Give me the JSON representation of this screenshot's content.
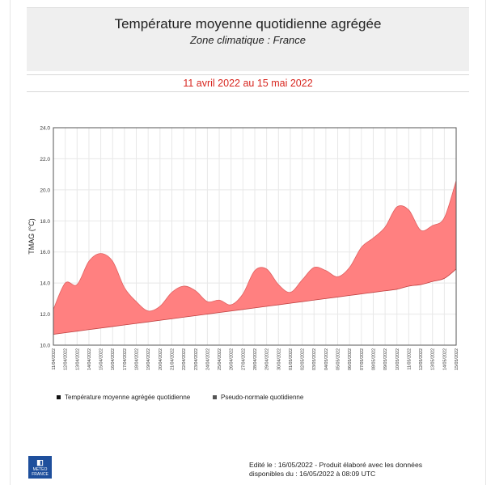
{
  "header": {
    "title": "Température moyenne quotidienne agrégée",
    "subtitle": "Zone climatique : France"
  },
  "date_range": "11 avril 2022 au 15 mai 2022",
  "chart_data": {
    "type": "area",
    "ylabel": "TMAG (°C)",
    "ylim": [
      10.0,
      24.0
    ],
    "y_ticks": [
      "10.0",
      "12.0",
      "14.0",
      "16.0",
      "18.0",
      "20.0",
      "22.0",
      "24.0"
    ],
    "grid": true,
    "x": [
      "11/04/2022",
      "12/04/2022",
      "13/04/2022",
      "14/04/2022",
      "15/04/2022",
      "16/04/2022",
      "17/04/2022",
      "18/04/2022",
      "19/04/2022",
      "20/04/2022",
      "21/04/2022",
      "22/04/2022",
      "23/04/2022",
      "24/04/2022",
      "25/04/2022",
      "26/04/2022",
      "27/04/2022",
      "28/04/2022",
      "29/04/2022",
      "30/04/2022",
      "01/05/2022",
      "02/05/2022",
      "03/05/2022",
      "04/05/2022",
      "05/05/2022",
      "06/05/2022",
      "07/05/2022",
      "08/05/2022",
      "09/05/2022",
      "10/05/2022",
      "11/05/2022",
      "12/05/2022",
      "13/05/2022",
      "14/05/2022",
      "15/05/2022"
    ],
    "series": [
      {
        "name": "Température moyenne agrégée  quotidienne",
        "values": [
          12.3,
          14.0,
          13.9,
          15.4,
          15.9,
          15.4,
          13.7,
          12.8,
          12.2,
          12.5,
          13.4,
          13.8,
          13.5,
          12.8,
          12.9,
          12.6,
          13.3,
          14.8,
          14.9,
          13.9,
          13.4,
          14.2,
          15.0,
          14.8,
          14.4,
          15.0,
          16.3,
          16.9,
          17.6,
          18.9,
          18.7,
          17.4,
          17.7,
          18.2,
          20.6
        ]
      },
      {
        "name": "Pseudo-normale quotidienne",
        "values": [
          10.7,
          10.8,
          10.9,
          11.0,
          11.1,
          11.2,
          11.3,
          11.4,
          11.5,
          11.6,
          11.7,
          11.8,
          11.9,
          12.0,
          12.1,
          12.2,
          12.3,
          12.4,
          12.5,
          12.6,
          12.7,
          12.8,
          12.9,
          13.0,
          13.1,
          13.2,
          13.3,
          13.4,
          13.5,
          13.6,
          13.8,
          13.9,
          14.1,
          14.3,
          14.9
        ]
      }
    ],
    "colors": {
      "fill": "#ff8080",
      "line": "#111111",
      "grid": "#e8e8e8"
    }
  },
  "legend": {
    "items": [
      {
        "label": "Température moyenne agrégée  quotidienne",
        "color": "#111111"
      },
      {
        "label": "Pseudo-normale quotidienne",
        "color": "#555555"
      }
    ]
  },
  "logo": {
    "mark": "◧",
    "line1": "METEO",
    "line2": "FRANCE"
  },
  "footer": {
    "line1": "Edité le : 16/05/2022 - Produit élaboré avec les données",
    "line2": "disponibles du : 16/05/2022 à 08:09 UTC"
  }
}
